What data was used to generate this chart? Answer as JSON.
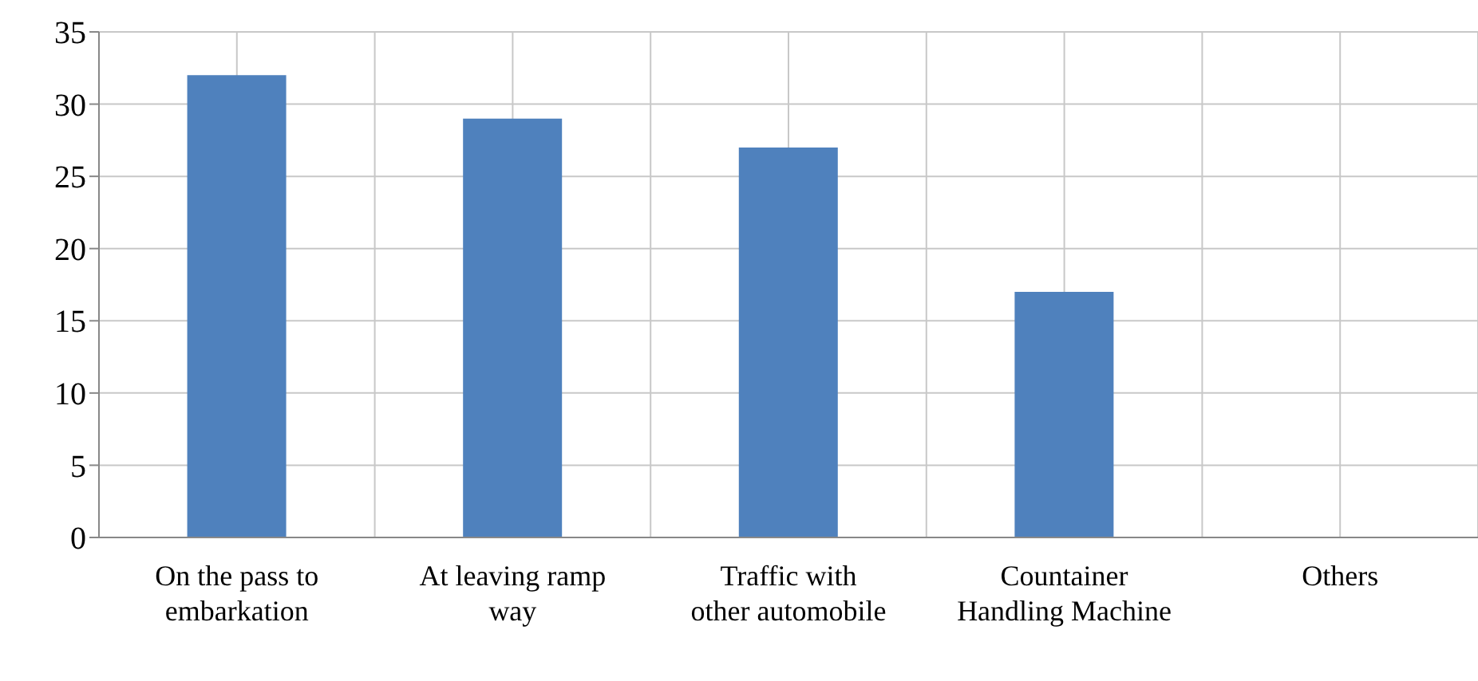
{
  "chart_data": {
    "type": "bar",
    "categories": [
      "On the pass to embarkation",
      "At leaving ramp way",
      "Traffic with other automobile",
      "Countainer Handling Machine",
      "Others"
    ],
    "values": [
      32,
      29,
      27,
      17,
      0
    ],
    "color": "#4f81bd",
    "ylim": [
      0,
      35
    ],
    "yticks": [
      0,
      5,
      10,
      15,
      20,
      25,
      30,
      35
    ],
    "grid": true
  }
}
